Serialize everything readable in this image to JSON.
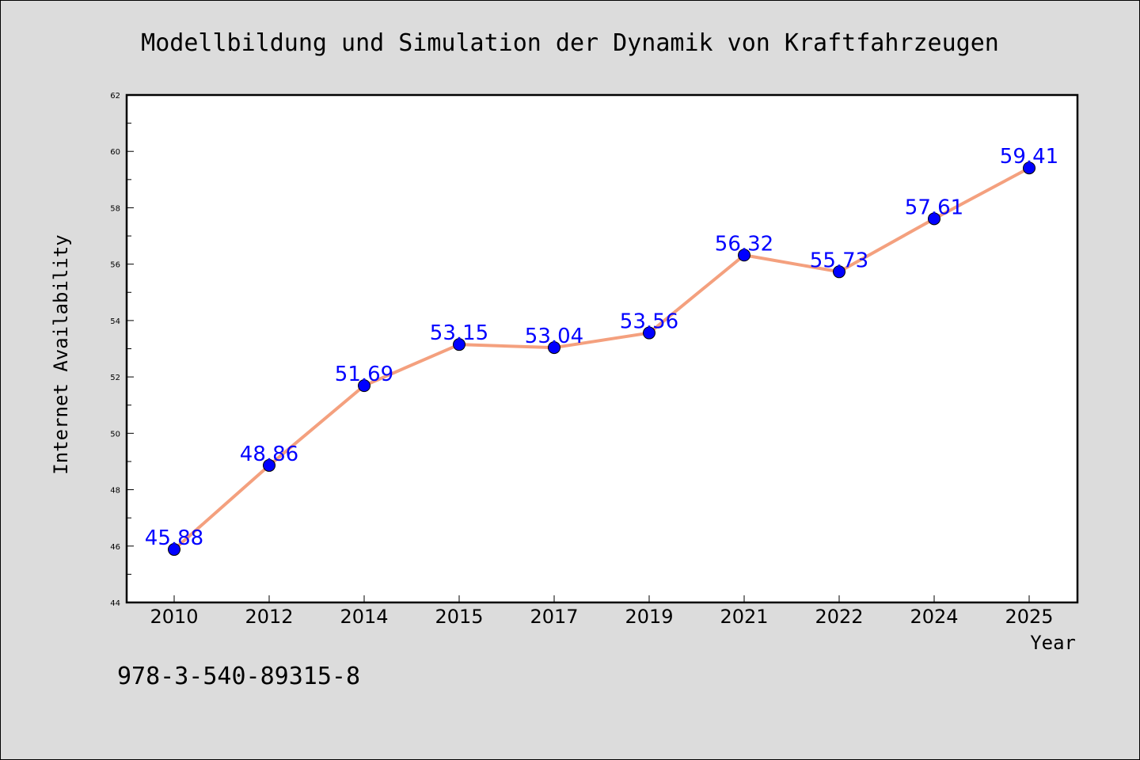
{
  "chart_data": {
    "type": "line",
    "title": "Modellbildung und Simulation der Dynamik von Kraftfahrzeugen",
    "xlabel": "Year",
    "ylabel": "Internet Availability",
    "categories": [
      "2010",
      "2012",
      "2014",
      "2015",
      "2017",
      "2019",
      "2021",
      "2022",
      "2024",
      "2025"
    ],
    "series": [
      {
        "values": [
          45.88,
          48.86,
          51.69,
          53.15,
          53.04,
          53.56,
          56.32,
          55.73,
          57.61,
          59.41
        ],
        "labels": [
          "45.88",
          "48.86",
          "51.69",
          "53.15",
          "53.04",
          "53.56",
          "56.32",
          "55.73",
          "57.61",
          "59.41"
        ],
        "line_color": "#f4a07e",
        "marker_color": "#0000ff"
      }
    ],
    "ylim": [
      44,
      62
    ],
    "yticks": [
      "44",
      "46",
      "48",
      "50",
      "52",
      "54",
      "56",
      "58",
      "60",
      "62"
    ],
    "grid": false,
    "legend": "none"
  },
  "annotation": "978-3-540-89315-8",
  "colors": {
    "background": "#dcdcdc",
    "plot_area": "#ffffff",
    "line": "#f4a07e",
    "marker": "#0000ff",
    "data_label": "#0000ff"
  }
}
